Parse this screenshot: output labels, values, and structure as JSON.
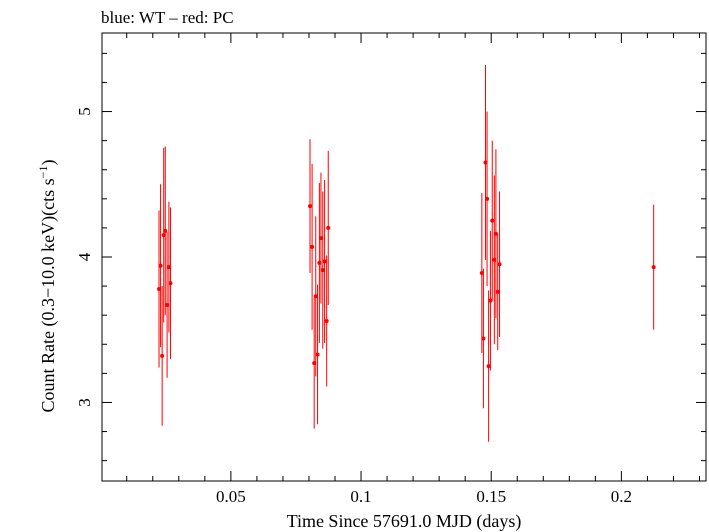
{
  "header": {
    "legend_text": "blue: WT – red: PC"
  },
  "chart_data": {
    "type": "scatter",
    "title": "blue: WT – red: PC",
    "xlabel": "Time Since 57691.0 MJD (days)",
    "ylabel_main": "Count Rate (0.3−10.0 keV)(cts s",
    "ylabel_sup": "−1",
    "ylabel_close": ")",
    "xlim": [
      0.0005,
      0.2325
    ],
    "ylim": [
      2.46,
      5.54
    ],
    "x_ticks": [
      0.05,
      0.1,
      0.15,
      0.2
    ],
    "x_tick_labels": [
      "0.05",
      "0.1",
      "0.15",
      "0.2"
    ],
    "y_ticks": [
      3,
      4,
      5
    ],
    "y_tick_labels": [
      "3",
      "4",
      "5"
    ],
    "x_minor_step": 0.01,
    "y_minor_step": 0.2,
    "grid": false,
    "legend": "none",
    "series": [
      {
        "color": "#ff0000",
        "x": [
          0.0224,
          0.023,
          0.0236,
          0.0242,
          0.0248,
          0.0255,
          0.0262,
          0.0268,
          0.0804,
          0.0812,
          0.082,
          0.0826,
          0.0833,
          0.084,
          0.0846,
          0.0853,
          0.086,
          0.0868,
          0.0874,
          0.1464,
          0.147,
          0.1478,
          0.1484,
          0.149,
          0.1497,
          0.1504,
          0.1512,
          0.1518,
          0.1525,
          0.1532,
          0.2124
        ],
        "y": [
          3.78,
          3.94,
          3.32,
          4.15,
          4.18,
          3.67,
          3.93,
          3.82,
          4.35,
          4.07,
          3.27,
          3.73,
          3.33,
          3.96,
          4.13,
          3.91,
          3.97,
          3.56,
          4.2,
          3.89,
          3.44,
          4.65,
          4.4,
          3.25,
          3.7,
          4.25,
          3.98,
          4.16,
          3.76,
          3.95,
          3.93
        ],
        "yerr": [
          0.54,
          0.56,
          0.48,
          0.6,
          0.58,
          0.5,
          0.45,
          0.52,
          0.46,
          0.57,
          0.45,
          0.55,
          0.48,
          0.55,
          0.45,
          0.54,
          0.56,
          0.45,
          0.53,
          0.55,
          0.48,
          0.67,
          0.6,
          0.52,
          0.48,
          0.55,
          0.58,
          0.58,
          0.4,
          0.5,
          0.43
        ]
      }
    ]
  }
}
